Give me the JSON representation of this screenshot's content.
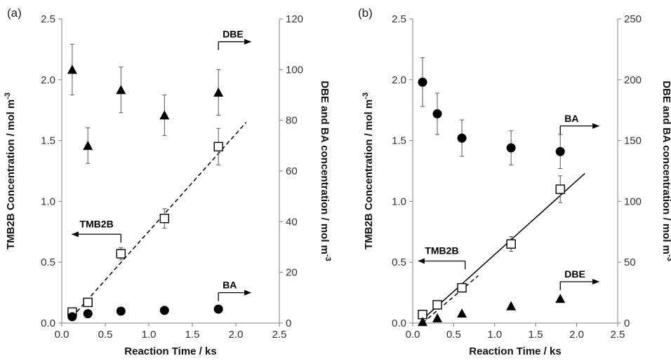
{
  "chart_data": [
    {
      "panel_label": "(a)",
      "type": "scatter",
      "xlabel": "Reaction Time / ks",
      "xlim": [
        0,
        2.5
      ],
      "xticks": [
        "0.0",
        "0.5",
        "1.0",
        "1.5",
        "2.0",
        "2.5"
      ],
      "ylabel_left": "TMB2B Concentration / mol m",
      "ylabel_left_sup": "-3",
      "ylim_left": [
        0,
        2.5
      ],
      "yticks_left": [
        "0.0",
        "0.5",
        "1.0",
        "1.5",
        "2.0",
        "2.5"
      ],
      "ylabel_right": "DBE and BA concentration / mol m",
      "ylabel_right_sup": "-3",
      "ylim_right": [
        0,
        120
      ],
      "yticks_right": [
        "0",
        "20",
        "40",
        "60",
        "80",
        "100",
        "120"
      ],
      "grid": false,
      "series": [
        {
          "name": "TMB2B",
          "axis": "left",
          "marker": "open-square",
          "x": [
            0.12,
            0.3,
            0.68,
            1.18,
            1.8
          ],
          "y": [
            0.09,
            0.17,
            0.57,
            0.86,
            1.45
          ],
          "err": [
            0.02,
            0.02,
            0.05,
            0.08,
            0.15
          ]
        },
        {
          "name": "DBE",
          "axis": "right",
          "marker": "triangle",
          "x": [
            0.12,
            0.3,
            0.68,
            1.18,
            1.8
          ],
          "y": [
            100,
            70,
            92,
            82,
            91
          ],
          "err": [
            10,
            7,
            9,
            8,
            9
          ]
        },
        {
          "name": "BA",
          "axis": "right",
          "marker": "circle",
          "x": [
            0.12,
            0.3,
            0.68,
            1.18,
            1.8
          ],
          "y": [
            2.5,
            3.7,
            4.7,
            5.0,
            5.5
          ],
          "err": [
            0,
            0,
            0,
            0,
            0
          ]
        }
      ],
      "fit_lines": [
        {
          "style": "dashed",
          "axis": "left",
          "x": [
            0.12,
            2.12
          ],
          "y": [
            0.05,
            1.65
          ]
        }
      ],
      "annotations": [
        {
          "text": "DBE",
          "direction": "right",
          "axis": "right",
          "x": 1.8,
          "y": 111,
          "arrow_to_x": 2.17
        },
        {
          "text": "TMB2B",
          "direction": "left",
          "axis": "left",
          "x": 0.68,
          "y": 0.73,
          "arrow_to_x": 0.12
        },
        {
          "text": "BA",
          "direction": "right",
          "axis": "right",
          "x": 1.8,
          "y": 12,
          "arrow_to_x": 2.17
        }
      ]
    },
    {
      "panel_label": "(b)",
      "type": "scatter",
      "xlabel": "Reaction Time / ks",
      "xlim": [
        0,
        2.5
      ],
      "xticks": [
        "0.0",
        "0.5",
        "1.0",
        "1.5",
        "2.0",
        "2.5"
      ],
      "ylabel_left": "TMB2B Concentration / mol m",
      "ylabel_left_sup": "-3",
      "ylim_left": [
        0,
        2.5
      ],
      "yticks_left": [
        "0.0",
        "0.5",
        "1.0",
        "1.5",
        "2.0",
        "2.5"
      ],
      "ylabel_right": "DBE and BA concentration / mol m",
      "ylabel_right_sup": "-3",
      "ylim_right": [
        0,
        250
      ],
      "yticks_right": [
        "0",
        "50",
        "100",
        "150",
        "200",
        "250"
      ],
      "grid": false,
      "series": [
        {
          "name": "TMB2B",
          "axis": "left",
          "marker": "open-square",
          "x": [
            0.12,
            0.3,
            0.6,
            1.2,
            1.8
          ],
          "y": [
            0.07,
            0.15,
            0.29,
            0.65,
            1.1
          ],
          "err": [
            0.01,
            0.02,
            0.03,
            0.06,
            0.11
          ]
        },
        {
          "name": "BA",
          "axis": "right",
          "marker": "circle",
          "x": [
            0.12,
            0.3,
            0.6,
            1.2,
            1.8
          ],
          "y": [
            198,
            172,
            152,
            144,
            141
          ],
          "err": [
            20,
            17,
            15,
            14,
            14
          ]
        },
        {
          "name": "DBE",
          "axis": "right",
          "marker": "triangle",
          "x": [
            0.12,
            0.3,
            0.6,
            1.2,
            1.8
          ],
          "y": [
            1,
            4,
            8,
            14,
            20
          ],
          "err": [
            0,
            0,
            0,
            0,
            0
          ]
        }
      ],
      "fit_lines": [
        {
          "style": "solid",
          "axis": "left",
          "x": [
            0.12,
            2.1
          ],
          "y": [
            0.03,
            1.23
          ]
        },
        {
          "style": "dashed",
          "axis": "left",
          "x": [
            0.12,
            0.8
          ],
          "y": [
            0.0,
            0.39
          ]
        }
      ],
      "annotations": [
        {
          "text": "BA",
          "direction": "right",
          "axis": "right",
          "x": 1.8,
          "y": 162,
          "arrow_to_x": 2.27
        },
        {
          "text": "TMB2B",
          "direction": "left",
          "axis": "left",
          "x": 0.64,
          "y": 0.51,
          "arrow_to_x": 0.07
        },
        {
          "text": "DBE",
          "direction": "right",
          "axis": "right",
          "x": 1.8,
          "y": 34,
          "arrow_to_x": 2.27
        }
      ]
    }
  ]
}
